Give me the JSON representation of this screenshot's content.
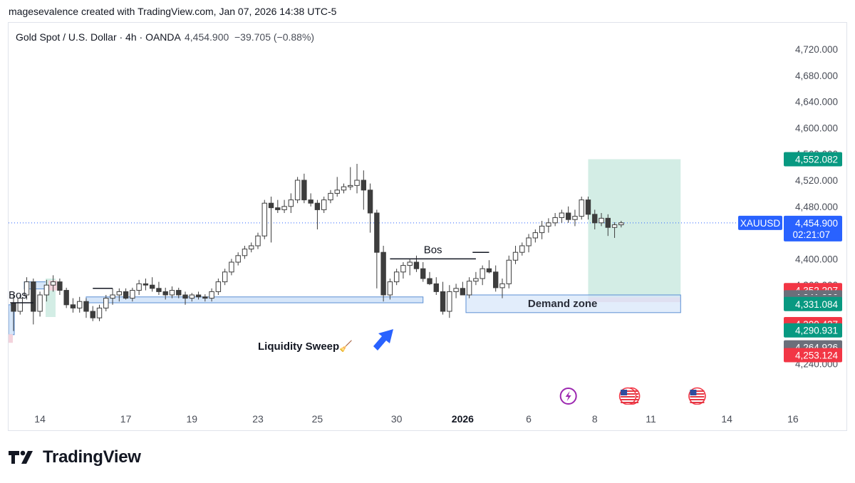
{
  "header": {
    "attribution": "magesevalence created with TradingView.com, Jan 07, 2026 14:38 UTC-5"
  },
  "legend": {
    "symbol": "Gold Spot / U.S. Dollar · 4h · OANDA",
    "price": "4,454.900",
    "change": "−39.705 (−0.88%)"
  },
  "footer": {
    "brand": "TradingView"
  },
  "colors": {
    "up_body": "#ffffff",
    "candle_stroke": "#3d3d3d",
    "down_body": "#3d3d3d",
    "zone_fill": "#d6e6f9",
    "zone_stroke": "#5b8fd4",
    "target_fill": "#d3ede5",
    "stop_fill": "#f3d3dc",
    "arrow": "#2962ff",
    "price_tag": "#2962ff",
    "tag_green": "#089981",
    "tag_red": "#f23645",
    "tag_gray": "#6b6f7a",
    "text": "#131722",
    "axis_text": "#4a4e58"
  },
  "chart_data": {
    "type": "candlestick",
    "symbol": "XAUUSD",
    "timeframe": "4h",
    "ylim": [
      4200,
      4780
    ],
    "y_ticks": [
      "4,720.000",
      "4,680.000",
      "4,640.000",
      "4,600.000",
      "4,560.000",
      "4,520.000",
      "4,480.000",
      "4,400.000",
      "4,360.000",
      "4,240.000"
    ],
    "y_tick_values": [
      4720,
      4680,
      4640,
      4600,
      4560,
      4520,
      4480,
      4400,
      4360,
      4240
    ],
    "x_ticks": [
      {
        "label": "14",
        "bar": 4,
        "bold": false
      },
      {
        "label": "17",
        "bar": 17,
        "bold": false
      },
      {
        "label": "19",
        "bar": 27,
        "bold": false
      },
      {
        "label": "23",
        "bar": 37,
        "bold": false
      },
      {
        "label": "25",
        "bar": 46,
        "bold": false
      },
      {
        "label": "30",
        "bar": 58,
        "bold": false
      },
      {
        "label": "2026",
        "bar": 68,
        "bold": true
      },
      {
        "label": "6",
        "bar": 78,
        "bold": false
      },
      {
        "label": "8",
        "bar": 88,
        "bold": false
      },
      {
        "label": "11",
        "bar": 96.5,
        "bold": false
      },
      {
        "label": "14",
        "bar": 108,
        "bold": false
      },
      {
        "label": "16",
        "bar": 118,
        "bold": false
      }
    ],
    "ohlc": [
      [
        4333,
        4345,
        4290,
        4320
      ],
      [
        4320,
        4345,
        4315,
        4340
      ],
      [
        4345,
        4372,
        4338,
        4365
      ],
      [
        4365,
        4370,
        4300,
        4320
      ],
      [
        4320,
        4350,
        4312,
        4345
      ],
      [
        4345,
        4368,
        4335,
        4360
      ],
      [
        4360,
        4375,
        4350,
        4365
      ],
      [
        4365,
        4370,
        4345,
        4352
      ],
      [
        4352,
        4356,
        4325,
        4330
      ],
      [
        4330,
        4340,
        4318,
        4325
      ],
      [
        4325,
        4342,
        4318,
        4335
      ],
      [
        4335,
        4340,
        4310,
        4320
      ],
      [
        4320,
        4328,
        4305,
        4310
      ],
      [
        4310,
        4330,
        4305,
        4325
      ],
      [
        4325,
        4345,
        4320,
        4340
      ],
      [
        4340,
        4355,
        4330,
        4345
      ],
      [
        4345,
        4355,
        4335,
        4350
      ],
      [
        4350,
        4355,
        4338,
        4340
      ],
      [
        4340,
        4356,
        4335,
        4352
      ],
      [
        4352,
        4368,
        4345,
        4362
      ],
      [
        4362,
        4370,
        4352,
        4360
      ],
      [
        4360,
        4372,
        4350,
        4355
      ],
      [
        4355,
        4365,
        4345,
        4350
      ],
      [
        4350,
        4356,
        4338,
        4345
      ],
      [
        4345,
        4358,
        4340,
        4352
      ],
      [
        4352,
        4356,
        4340,
        4345
      ],
      [
        4345,
        4350,
        4330,
        4340
      ],
      [
        4340,
        4348,
        4335,
        4345
      ],
      [
        4345,
        4350,
        4338,
        4342
      ],
      [
        4342,
        4346,
        4335,
        4340
      ],
      [
        4340,
        4355,
        4335,
        4350
      ],
      [
        4350,
        4370,
        4345,
        4365
      ],
      [
        4365,
        4385,
        4360,
        4380
      ],
      [
        4380,
        4400,
        4375,
        4395
      ],
      [
        4395,
        4410,
        4390,
        4405
      ],
      [
        4405,
        4420,
        4400,
        4415
      ],
      [
        4415,
        4425,
        4410,
        4420
      ],
      [
        4420,
        4440,
        4415,
        4435
      ],
      [
        4435,
        4490,
        4430,
        4485
      ],
      [
        4485,
        4495,
        4425,
        4478
      ],
      [
        4478,
        4490,
        4470,
        4475
      ],
      [
        4475,
        4490,
        4470,
        4480
      ],
      [
        4480,
        4500,
        4470,
        4490
      ],
      [
        4490,
        4525,
        4485,
        4520
      ],
      [
        4520,
        4530,
        4485,
        4490
      ],
      [
        4490,
        4500,
        4480,
        4485
      ],
      [
        4485,
        4490,
        4445,
        4475
      ],
      [
        4475,
        4495,
        4470,
        4490
      ],
      [
        4490,
        4505,
        4485,
        4500
      ],
      [
        4500,
        4525,
        4495,
        4505
      ],
      [
        4505,
        4515,
        4500,
        4510
      ],
      [
        4510,
        4540,
        4505,
        4512
      ],
      [
        4512,
        4545,
        4500,
        4520
      ],
      [
        4520,
        4535,
        4475,
        4505
      ],
      [
        4505,
        4515,
        4440,
        4470
      ],
      [
        4470,
        4475,
        4355,
        4410
      ],
      [
        4410,
        4420,
        4335,
        4345
      ],
      [
        4345,
        4370,
        4338,
        4365
      ],
      [
        4365,
        4385,
        4360,
        4380
      ],
      [
        4380,
        4395,
        4370,
        4390
      ],
      [
        4390,
        4400,
        4375,
        4395
      ],
      [
        4395,
        4405,
        4380,
        4385
      ],
      [
        4385,
        4395,
        4365,
        4370
      ],
      [
        4370,
        4380,
        4360,
        4362
      ],
      [
        4362,
        4372,
        4345,
        4350
      ],
      [
        4350,
        4365,
        4315,
        4320
      ],
      [
        4320,
        4360,
        4310,
        4350
      ],
      [
        4350,
        4362,
        4340,
        4355
      ],
      [
        4355,
        4365,
        4345,
        4345
      ],
      [
        4345,
        4372,
        4340,
        4366
      ],
      [
        4366,
        4380,
        4360,
        4370
      ],
      [
        4370,
        4390,
        4360,
        4385
      ],
      [
        4385,
        4398,
        4378,
        4380
      ],
      [
        4380,
        4390,
        4350,
        4356
      ],
      [
        4356,
        4370,
        4340,
        4362
      ],
      [
        4362,
        4405,
        4355,
        4398
      ],
      [
        4398,
        4420,
        4392,
        4410
      ],
      [
        4410,
        4425,
        4405,
        4420
      ],
      [
        4420,
        4438,
        4410,
        4432
      ],
      [
        4432,
        4445,
        4425,
        4440
      ],
      [
        4440,
        4458,
        4430,
        4450
      ],
      [
        4450,
        4462,
        4440,
        4455
      ],
      [
        4455,
        4470,
        4450,
        4463
      ],
      [
        4463,
        4475,
        4455,
        4470
      ],
      [
        4470,
        4480,
        4455,
        4460
      ],
      [
        4460,
        4475,
        4450,
        4465
      ],
      [
        4465,
        4495,
        4460,
        4490
      ],
      [
        4490,
        4495,
        4460,
        4468
      ],
      [
        4468,
        4475,
        4445,
        4455
      ],
      [
        4455,
        4470,
        4450,
        4462
      ],
      [
        4462,
        4468,
        4435,
        4448
      ],
      [
        4448,
        4456,
        4432,
        4452
      ],
      [
        4452,
        4458,
        4448,
        4455
      ]
    ],
    "current_price": 4454.9,
    "price_label": "4,454.900",
    "countdown": "02:21:07",
    "symbol_tag": "XAUUSD",
    "position": {
      "entry": 4341.386,
      "target": 4552.082,
      "stop": 4334.093,
      "start_bar": 87,
      "end_bar": 101
    },
    "demand_zone": {
      "top": 4345,
      "bottom": 4318,
      "start_bar": 68.5,
      "end_bar": 101,
      "label": "Demand zone"
    },
    "liquidity_zone": {
      "top": 4342,
      "bottom": 4333,
      "start_bar": 11,
      "end_bar": 62
    },
    "bos_lines": [
      {
        "price": 4400,
        "start_bar": 57,
        "end_bar": 70,
        "label": "Bos"
      },
      {
        "price": 4410,
        "start_bar": 69.5,
        "end_bar": 72,
        "label": ""
      },
      {
        "price": 4333,
        "start_bar": -0.5,
        "end_bar": 3,
        "label": "Bos"
      },
      {
        "price": 4355,
        "start_bar": 12,
        "end_bar": 15,
        "label": ""
      }
    ],
    "annotations": [
      {
        "text": "Liquidity Sweep🧹"
      }
    ],
    "price_tags": [
      {
        "label": "4,552.082",
        "value": 4552.082,
        "color": "green"
      },
      {
        "label": "4,352.297",
        "value": 4352.297,
        "color": "red"
      },
      {
        "label": "4,341.386",
        "value": 4341.386,
        "color": "gray"
      },
      {
        "label": "4,334.093",
        "value": 4334.093,
        "color": "gray"
      },
      {
        "label": "4,331.084",
        "value": 4331.084,
        "color": "green"
      },
      {
        "label": "4,300.427",
        "value": 4300.427,
        "color": "red"
      },
      {
        "label": "4,290.931",
        "value": 4290.931,
        "color": "green"
      },
      {
        "label": "4,264.926",
        "value": 4264.926,
        "color": "gray"
      },
      {
        "label": "4,253.124",
        "value": 4253.124,
        "color": "red"
      }
    ],
    "events": [
      {
        "type": "lightning",
        "bar": 84
      },
      {
        "type": "us-flag",
        "bar": 93
      },
      {
        "type": "us-flag",
        "bar": 103.5
      }
    ]
  }
}
